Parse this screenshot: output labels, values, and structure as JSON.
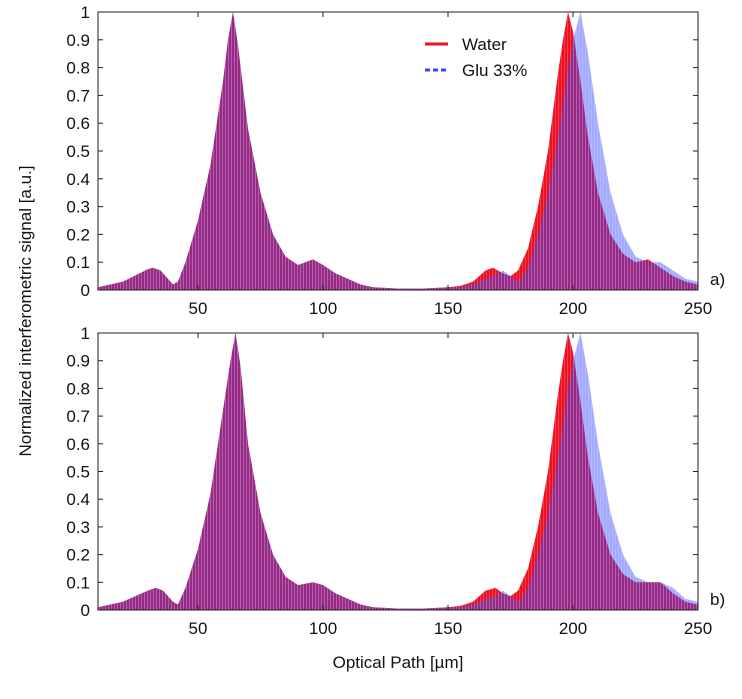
{
  "chart_data": [
    {
      "type": "area",
      "panel_label": "a)",
      "xlim": [
        10,
        250
      ],
      "ylim": [
        0,
        1
      ],
      "xticks": [
        50,
        100,
        150,
        200,
        250
      ],
      "yticks": [
        0,
        0.1,
        0.2,
        0.3,
        0.4,
        0.5,
        0.6,
        0.7,
        0.8,
        0.9,
        1
      ],
      "ytick_labels": [
        "0",
        "0.1",
        "0.2",
        "0.3",
        "0.4",
        "0.5",
        "0.6",
        "0.7",
        "0.8",
        "0.9",
        "1"
      ],
      "legend": {
        "position": "top-center",
        "entries": [
          "Water",
          "Glu 33%"
        ]
      },
      "series": [
        {
          "name": "Water",
          "color": "#ee1122",
          "x": [
            10,
            20,
            30,
            32,
            35,
            40,
            42,
            45,
            50,
            55,
            60,
            62,
            64,
            66,
            70,
            75,
            80,
            85,
            90,
            96,
            100,
            105,
            110,
            115,
            120,
            130,
            140,
            150,
            155,
            160,
            165,
            168,
            172,
            175,
            178,
            182,
            186,
            190,
            194,
            196,
            198,
            200,
            203,
            206,
            210,
            215,
            220,
            225,
            230,
            235,
            240,
            245,
            250
          ],
          "y": [
            0.01,
            0.03,
            0.075,
            0.08,
            0.07,
            0.02,
            0.03,
            0.1,
            0.25,
            0.45,
            0.75,
            0.9,
            1.0,
            0.88,
            0.58,
            0.35,
            0.2,
            0.12,
            0.09,
            0.11,
            0.09,
            0.06,
            0.04,
            0.02,
            0.01,
            0.005,
            0.005,
            0.01,
            0.015,
            0.03,
            0.07,
            0.08,
            0.06,
            0.05,
            0.07,
            0.15,
            0.3,
            0.5,
            0.78,
            0.9,
            1.0,
            0.93,
            0.75,
            0.55,
            0.35,
            0.2,
            0.13,
            0.1,
            0.11,
            0.08,
            0.05,
            0.03,
            0.02
          ]
        },
        {
          "name": "Glu 33%",
          "color": "#3344ff",
          "x": [
            10,
            20,
            30,
            32,
            35,
            40,
            42,
            45,
            50,
            55,
            60,
            62,
            64,
            66,
            70,
            75,
            80,
            85,
            90,
            96,
            100,
            105,
            110,
            115,
            120,
            130,
            140,
            150,
            155,
            160,
            165,
            168,
            172,
            175,
            178,
            182,
            186,
            190,
            194,
            196,
            198,
            200,
            203,
            206,
            210,
            215,
            220,
            225,
            230,
            235,
            240,
            245,
            250
          ],
          "y": [
            0.01,
            0.03,
            0.075,
            0.08,
            0.07,
            0.02,
            0.03,
            0.1,
            0.25,
            0.45,
            0.75,
            0.9,
            1.0,
            0.88,
            0.58,
            0.35,
            0.2,
            0.12,
            0.09,
            0.11,
            0.09,
            0.06,
            0.04,
            0.02,
            0.01,
            0.005,
            0.005,
            0.01,
            0.01,
            0.02,
            0.04,
            0.05,
            0.07,
            0.05,
            0.03,
            0.08,
            0.2,
            0.35,
            0.55,
            0.68,
            0.8,
            0.9,
            1.0,
            0.85,
            0.6,
            0.35,
            0.2,
            0.12,
            0.1,
            0.1,
            0.07,
            0.04,
            0.03
          ]
        }
      ]
    },
    {
      "type": "area",
      "panel_label": "b)",
      "xlim": [
        10,
        250
      ],
      "ylim": [
        0,
        1
      ],
      "xticks": [
        50,
        100,
        150,
        200,
        250
      ],
      "yticks": [
        0,
        0.1,
        0.2,
        0.3,
        0.4,
        0.5,
        0.6,
        0.7,
        0.8,
        0.9,
        1
      ],
      "ytick_labels": [
        "0",
        "0.1",
        "0.2",
        "0.3",
        "0.4",
        "0.5",
        "0.6",
        "0.7",
        "0.8",
        "0.9",
        "1"
      ],
      "series": [
        {
          "name": "Water",
          "color": "#ee1122",
          "x": [
            10,
            20,
            30,
            33,
            36,
            40,
            42,
            45,
            50,
            55,
            60,
            63,
            65,
            67,
            70,
            75,
            80,
            85,
            90,
            96,
            100,
            105,
            110,
            115,
            120,
            130,
            140,
            150,
            155,
            160,
            165,
            169,
            172,
            175,
            178,
            182,
            186,
            190,
            194,
            196,
            198,
            200,
            203,
            206,
            210,
            215,
            220,
            225,
            230,
            235,
            240,
            245,
            250
          ],
          "y": [
            0.01,
            0.03,
            0.07,
            0.08,
            0.07,
            0.03,
            0.02,
            0.08,
            0.22,
            0.42,
            0.72,
            0.9,
            1.0,
            0.88,
            0.6,
            0.35,
            0.2,
            0.12,
            0.09,
            0.1,
            0.09,
            0.06,
            0.04,
            0.02,
            0.01,
            0.005,
            0.005,
            0.01,
            0.015,
            0.03,
            0.07,
            0.08,
            0.06,
            0.05,
            0.07,
            0.15,
            0.3,
            0.5,
            0.78,
            0.9,
            1.0,
            0.93,
            0.75,
            0.55,
            0.35,
            0.2,
            0.13,
            0.1,
            0.1,
            0.1,
            0.06,
            0.03,
            0.02
          ]
        },
        {
          "name": "Glu 33%",
          "color": "#3344ff",
          "x": [
            10,
            20,
            30,
            33,
            36,
            40,
            42,
            45,
            50,
            55,
            60,
            63,
            65,
            67,
            70,
            75,
            80,
            85,
            90,
            96,
            100,
            105,
            110,
            115,
            120,
            130,
            140,
            150,
            155,
            160,
            165,
            169,
            172,
            175,
            178,
            182,
            186,
            190,
            194,
            196,
            198,
            200,
            203,
            206,
            210,
            215,
            220,
            225,
            230,
            235,
            240,
            245,
            250
          ],
          "y": [
            0.01,
            0.03,
            0.07,
            0.08,
            0.07,
            0.03,
            0.02,
            0.08,
            0.22,
            0.42,
            0.72,
            0.9,
            1.0,
            0.88,
            0.6,
            0.35,
            0.2,
            0.12,
            0.09,
            0.1,
            0.09,
            0.06,
            0.04,
            0.02,
            0.01,
            0.005,
            0.005,
            0.01,
            0.01,
            0.02,
            0.04,
            0.05,
            0.07,
            0.05,
            0.03,
            0.08,
            0.2,
            0.35,
            0.55,
            0.68,
            0.8,
            0.9,
            1.0,
            0.85,
            0.6,
            0.35,
            0.2,
            0.12,
            0.1,
            0.1,
            0.08,
            0.04,
            0.03
          ]
        }
      ]
    }
  ],
  "ylabel": "Normalized interferometric signal [a.u.]",
  "xlabel": "Optical Path [µm]"
}
